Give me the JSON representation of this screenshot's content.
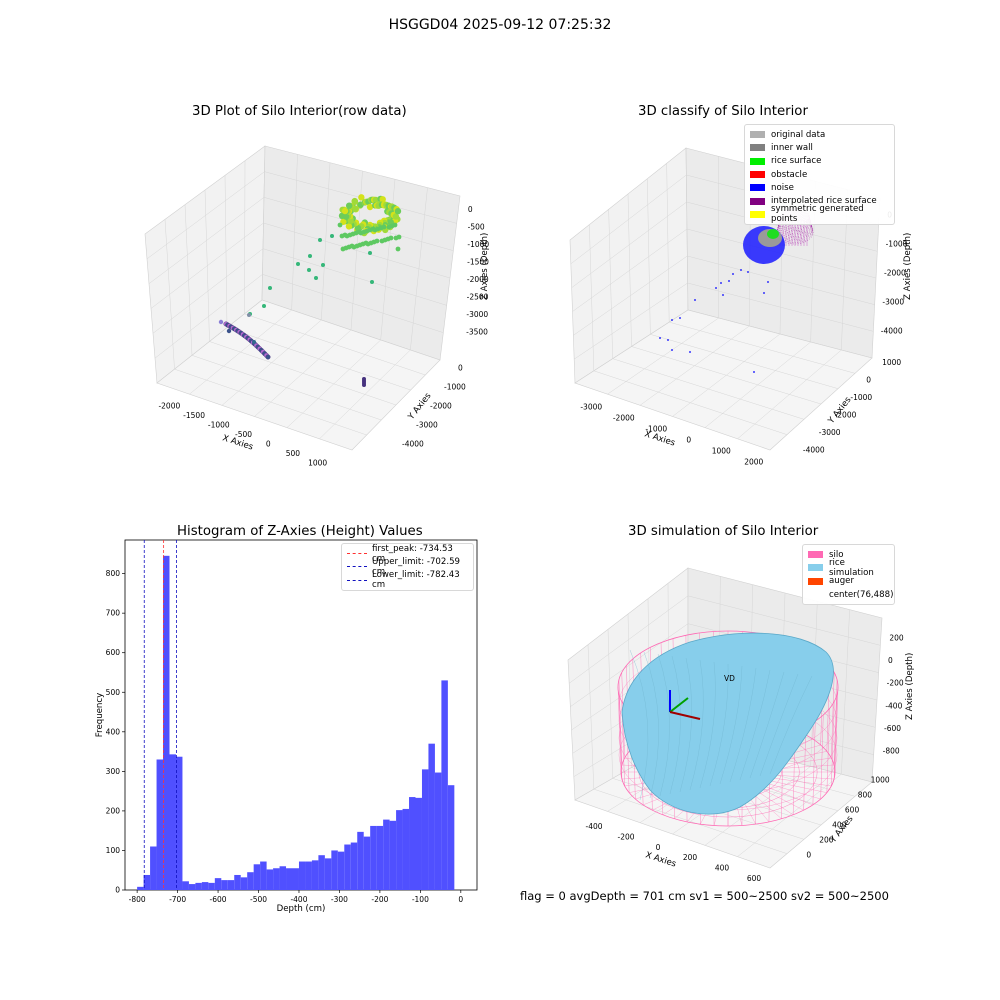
{
  "suptitle": "HSGGD04 2025-09-12 07:25:32",
  "footer": "flag = 0     avgDepth = 701 cm  sv1 = 500~2500  sv2 = 500~2500",
  "colors": {
    "histogram": "#5050ff",
    "first_peak": "#ff3030",
    "limits": "#1010c0",
    "silo": "#ff69b4",
    "rice_simulation": "#87ceeb",
    "auger": "#ff4500"
  },
  "chart_data": [
    {
      "type": "scatter",
      "title": "3D Plot of Silo Interior(row data)",
      "xlabel": "X Axies",
      "ylabel": "Y Axies",
      "zlabel": "Z Axies (Depth)",
      "xticks": [
        "-2000",
        "-1500",
        "-1000",
        "-500",
        "0",
        "500",
        "1000"
      ],
      "yticks": [
        "0",
        "-1000",
        "-2000",
        "-3000",
        "-4000"
      ],
      "zticks": [
        "0",
        "-500",
        "-1000",
        "-1500",
        "-2000",
        "-2500",
        "-3000",
        "-3500"
      ],
      "points_xyz": [
        [
          -1900,
          -400,
          -3500
        ],
        [
          -1800,
          -400,
          -3550
        ],
        [
          -1700,
          -500,
          -3600
        ],
        [
          -1600,
          -500,
          -3650
        ],
        [
          -1500,
          -600,
          -3700
        ],
        [
          -1400,
          -700,
          -3750
        ],
        [
          -1300,
          -750,
          -3800
        ],
        [
          -1200,
          -800,
          -3850
        ],
        [
          -1100,
          -900,
          -3900
        ],
        [
          -1000,
          -950,
          -3950
        ],
        [
          -900,
          -1000,
          -4000
        ],
        [
          -1200,
          -300,
          -2600
        ],
        [
          -700,
          -200,
          -2200
        ],
        [
          -400,
          -150,
          -1900
        ],
        [
          -200,
          -100,
          -1600
        ],
        [
          0,
          -50,
          -1400
        ],
        [
          100,
          -50,
          -1200
        ],
        [
          200,
          0,
          -1000
        ],
        [
          300,
          100,
          -900
        ],
        [
          400,
          200,
          -800
        ],
        [
          700,
          -3800,
          -3700
        ],
        [
          720,
          -3850,
          -3750
        ],
        [
          740,
          -3900,
          -3800
        ],
        [
          600,
          300,
          -300
        ],
        [
          650,
          350,
          -200
        ],
        [
          700,
          300,
          -100
        ],
        [
          750,
          250,
          -50
        ],
        [
          800,
          300,
          0
        ]
      ]
    },
    {
      "type": "scatter",
      "title": "3D classify of Silo Interior",
      "xlabel": "X Axies",
      "ylabel": "Y Axies",
      "zlabel": "Z Axies (Depth)",
      "xticks": [
        "-3000",
        "-2000",
        "-1000",
        "0",
        "1000",
        "2000"
      ],
      "yticks": [
        "1000",
        "0",
        "-1000",
        "-2000",
        "-3000",
        "-4000"
      ],
      "zticks": [
        "0",
        "-1000",
        "-2000",
        "-3000",
        "-4000"
      ],
      "legend": [
        {
          "label": "original data",
          "color": "#b0b0b0"
        },
        {
          "label": "inner wall",
          "color": "#808080"
        },
        {
          "label": "rice surface",
          "color": "#00ee00"
        },
        {
          "label": "obstacle",
          "color": "#ff0000"
        },
        {
          "label": "noise",
          "color": "#0000ff"
        },
        {
          "label": "interpolated rice surface",
          "color": "#800080"
        },
        {
          "label": "symmetric generated points",
          "color": "#ffff00"
        }
      ]
    },
    {
      "type": "bar",
      "title": "Histogram of Z-Axies (Height) Values",
      "xlabel": "Depth (cm)",
      "ylabel": "Frequency",
      "xlim": [
        -830,
        40
      ],
      "ylim": [
        0,
        885
      ],
      "xticks": [
        -800,
        -700,
        -600,
        -500,
        -400,
        -300,
        -200,
        -100,
        0
      ],
      "yticks": [
        0,
        100,
        200,
        300,
        400,
        500,
        600,
        700,
        800
      ],
      "bin_edges": [
        -800,
        -784,
        -768,
        -752,
        -736,
        -720,
        -704,
        -688,
        -672,
        -656,
        -640,
        -624,
        -608,
        -592,
        -576,
        -560,
        -544,
        -528,
        -512,
        -496,
        -480,
        -464,
        -448,
        -432,
        -416,
        -400,
        -384,
        -368,
        -352,
        -336,
        -320,
        -304,
        -288,
        -272,
        -256,
        -240,
        -224,
        -208,
        -192,
        -176,
        -160,
        -144,
        -128,
        -112,
        -96,
        -80,
        -64,
        -48,
        -32,
        -16,
        0
      ],
      "values": [
        8,
        38,
        110,
        330,
        845,
        343,
        337,
        22,
        15,
        18,
        20,
        18,
        30,
        25,
        25,
        38,
        32,
        45,
        65,
        72,
        52,
        55,
        60,
        55,
        55,
        72,
        72,
        75,
        88,
        80,
        100,
        97,
        115,
        120,
        147,
        135,
        162,
        162,
        178,
        175,
        202,
        205,
        235,
        233,
        305,
        370,
        297,
        530,
        265,
        0
      ],
      "vlines": [
        {
          "x": -734.53,
          "label": "first_peak: -734.53 cm",
          "color": "#ff3030"
        },
        {
          "x": -702.59,
          "label": "Upper_limit: -702.59 cm",
          "color": "#1010c0"
        },
        {
          "x": -782.43,
          "label": "Lower_limit: -782.43 cm",
          "color": "#1010c0"
        }
      ]
    },
    {
      "type": "area",
      "title": "3D simulation of Silo Interior",
      "xlabel": "X Axies",
      "ylabel": "Y Axies",
      "zlabel": "Z Axies (Depth)",
      "xticks": [
        "-400",
        "-200",
        "0",
        "200",
        "400",
        "600"
      ],
      "yticks": [
        "0",
        "200",
        "400",
        "600",
        "800",
        "1000"
      ],
      "zticks": [
        "200",
        "0",
        "-200",
        "-400",
        "-600",
        "-800"
      ],
      "legend": [
        {
          "label": "silo",
          "color": "#ff69b4"
        },
        {
          "label": "rice simulation",
          "color": "#87ceeb"
        },
        {
          "label": "auger",
          "color": "#ff4500"
        },
        {
          "label": "center(76,488)",
          "color": ""
        }
      ]
    }
  ]
}
